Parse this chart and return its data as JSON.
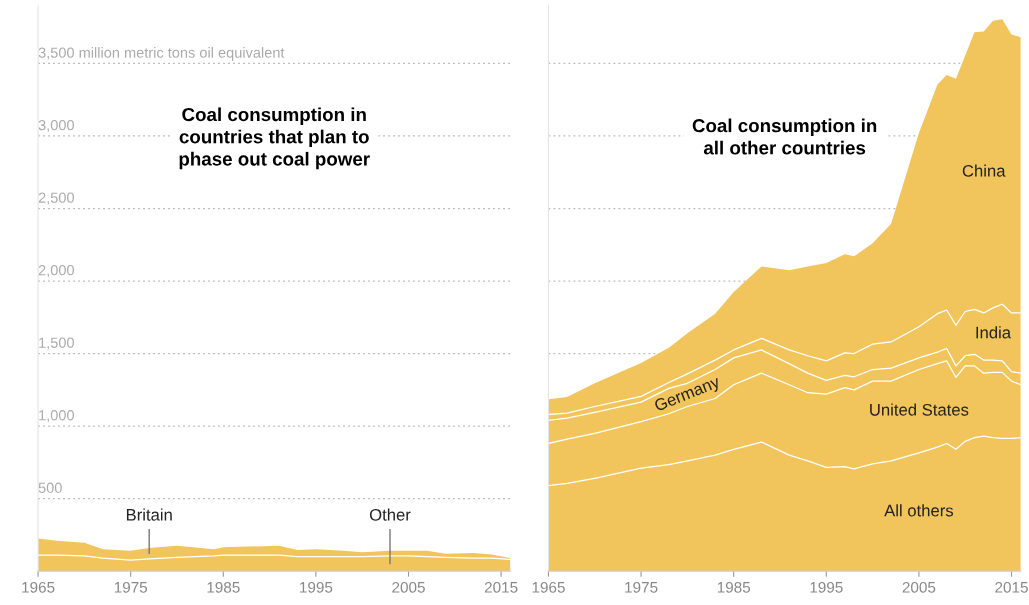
{
  "chart_data": [
    {
      "type": "area",
      "stacked": true,
      "title": "Coal consumption in\ncountries that plan to\nphase out coal power",
      "grid": "y",
      "xlim": [
        1965,
        2016
      ],
      "ylim": [
        0,
        3900
      ],
      "xticks": [
        1965,
        1975,
        1985,
        1995,
        2005,
        2015
      ],
      "yticks": [
        {
          "value": 500,
          "label": "500"
        },
        {
          "value": 1000,
          "label": "1,000"
        },
        {
          "value": 1500,
          "label": "1,500"
        },
        {
          "value": 2000,
          "label": "2,000"
        },
        {
          "value": 2500,
          "label": "2,500"
        },
        {
          "value": 3000,
          "label": "3,000"
        },
        {
          "value": 3500,
          "label": "3,500 million metric tons oil equivalent"
        }
      ],
      "x": [
        1965,
        1967,
        1970,
        1972,
        1975,
        1977,
        1980,
        1984,
        1985,
        1991,
        1993,
        1995,
        1998,
        2000,
        2003,
        2005,
        2007,
        2009,
        2012,
        2014,
        2016
      ],
      "series": [
        {
          "name": "Other",
          "color": "#f2c55c",
          "values": [
            110,
            110,
            105,
            90,
            75,
            85,
            95,
            105,
            110,
            110,
            100,
            100,
            100,
            100,
            105,
            105,
            100,
            95,
            90,
            90,
            80
          ]
        },
        {
          "name": "Britain",
          "color": "#f2c55c",
          "values": [
            115,
            100,
            90,
            60,
            65,
            75,
            80,
            45,
            55,
            65,
            45,
            50,
            40,
            30,
            35,
            35,
            40,
            25,
            35,
            25,
            10
          ]
        }
      ]
    },
    {
      "type": "area",
      "stacked": true,
      "title": "Coal consumption in\nall other countries",
      "grid": "y",
      "tick_labels": "x",
      "xlim": [
        1965,
        2016
      ],
      "ylim": [
        0,
        3900
      ],
      "xticks": [
        1965,
        1975,
        1985,
        1995,
        2005,
        2015
      ],
      "yticks": [
        500,
        1000,
        1500,
        2000,
        2500,
        3000,
        3500
      ],
      "x": [
        1965,
        1967,
        1970,
        1975,
        1978,
        1980,
        1983,
        1985,
        1988,
        1991,
        1993,
        1995,
        1997,
        1998,
        2000,
        2002,
        2005,
        2007,
        2008,
        2009,
        2010,
        2011,
        2012,
        2013,
        2014,
        2015,
        2016
      ],
      "series": [
        {
          "name": "All others",
          "color": "#f2c55c",
          "values": [
            590,
            605,
            640,
            710,
            735,
            760,
            800,
            840,
            890,
            800,
            760,
            715,
            720,
            705,
            740,
            760,
            815,
            855,
            880,
            840,
            895,
            920,
            930,
            920,
            915,
            915,
            920
          ]
        },
        {
          "name": "United States",
          "color": "#f2c55c",
          "values": [
            290,
            305,
            310,
            320,
            350,
            375,
            390,
            445,
            475,
            485,
            470,
            505,
            545,
            545,
            570,
            550,
            575,
            575,
            570,
            495,
            520,
            495,
            435,
            450,
            455,
            395,
            365
          ]
        },
        {
          "name": "Germany",
          "color": "#f2c55c",
          "values": [
            160,
            145,
            145,
            135,
            175,
            160,
            200,
            185,
            160,
            145,
            135,
            95,
            85,
            90,
            80,
            90,
            80,
            80,
            85,
            80,
            70,
            80,
            90,
            85,
            80,
            65,
            80
          ]
        },
        {
          "name": "India",
          "color": "#f2c55c",
          "values": [
            40,
            35,
            40,
            40,
            40,
            65,
            65,
            55,
            80,
            95,
            120,
            135,
            155,
            160,
            175,
            180,
            215,
            265,
            265,
            280,
            305,
            310,
            325,
            360,
            390,
            405,
            415
          ]
        },
        {
          "name": "China",
          "color": "#f2c55c",
          "values": [
            105,
            110,
            160,
            230,
            240,
            280,
            320,
            400,
            495,
            550,
            615,
            675,
            680,
            670,
            695,
            815,
            1335,
            1580,
            1620,
            1700,
            1765,
            1910,
            1940,
            1980,
            1965,
            1920,
            1900
          ]
        }
      ]
    }
  ]
}
